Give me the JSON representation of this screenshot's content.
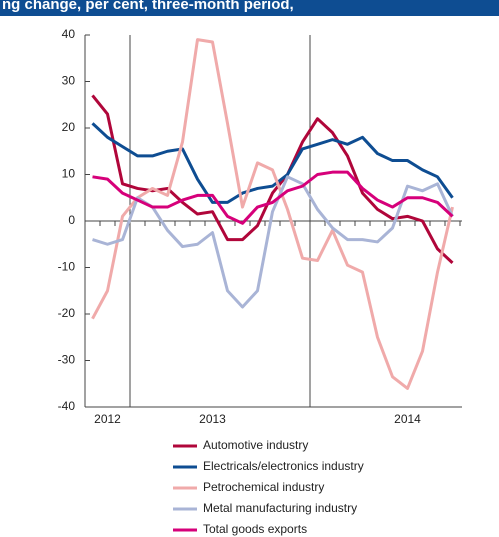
{
  "chart_data": {
    "type": "line",
    "title": "ng change, per cent, three-month period,",
    "categories": [
      null,
      "2012",
      null,
      null,
      null,
      null,
      null,
      null,
      "2013",
      null,
      null,
      null,
      null,
      null,
      null,
      null,
      null,
      null,
      null,
      null,
      null,
      "2014",
      null,
      null,
      null
    ],
    "series": [
      {
        "name": "Automotive industry",
        "color": "#b0063a",
        "values": [
          27,
          23,
          8,
          7,
          6.5,
          7,
          4,
          1.5,
          2,
          -4,
          -4,
          -1,
          6,
          10,
          17,
          22,
          19,
          14,
          6,
          2.5,
          0.5,
          1,
          0,
          -6,
          -9
        ]
      },
      {
        "name": "Electricals/electronics industry",
        "color": "#0e4d92",
        "values": [
          21,
          18,
          16,
          14,
          14,
          15,
          15.5,
          9,
          4,
          4,
          6,
          7,
          7.5,
          10,
          15.5,
          16.5,
          17.5,
          16.5,
          18,
          14.5,
          13,
          13,
          11,
          9.5,
          5
        ]
      },
      {
        "name": "Petrochemical industry",
        "color": "#f0aaaa",
        "values": [
          -21,
          -15,
          1,
          5,
          7,
          5.5,
          17,
          39,
          38.5,
          21,
          3,
          12.5,
          11,
          2.5,
          -8,
          -8.5,
          -2,
          -9.5,
          -11,
          -25,
          -33.5,
          -36,
          -28,
          -11,
          3
        ]
      },
      {
        "name": "Metal manufacturing industry",
        "color": "#a9b4d6",
        "values": [
          -4,
          -5,
          -4,
          5,
          3,
          -2,
          -5.5,
          -5,
          -2.5,
          -15,
          -18.5,
          -15,
          2,
          9.5,
          8,
          2.5,
          -1.5,
          -4,
          -4,
          -4.5,
          -1.5,
          7.5,
          6.5,
          8,
          1
        ]
      },
      {
        "name": "Total goods exports",
        "color": "#d6007a",
        "values": [
          9.5,
          9,
          6,
          4.5,
          3,
          3,
          4.5,
          5.5,
          5.5,
          1,
          -0.5,
          3,
          4,
          6.5,
          7.5,
          10,
          10.5,
          10.5,
          7,
          4.5,
          3,
          5,
          5,
          4,
          1
        ]
      }
    ],
    "ylim": [
      -40,
      40
    ],
    "yticks": [
      -40,
      -30,
      -20,
      -10,
      0,
      10,
      20,
      30,
      40
    ]
  }
}
